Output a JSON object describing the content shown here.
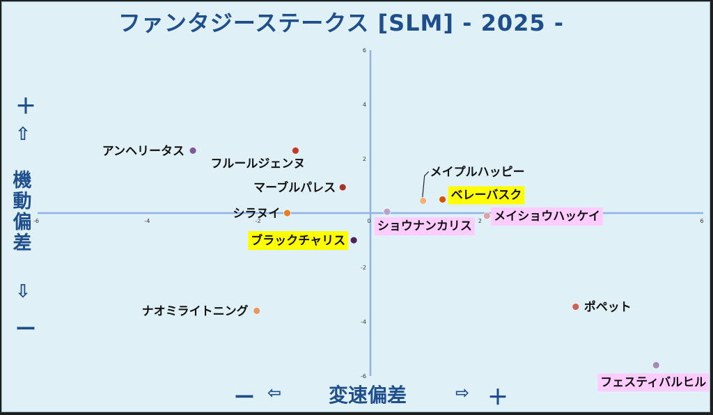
{
  "title": "ファンタジーステークス [SLM]  - 2025 -",
  "y_axis": {
    "plus": "＋",
    "up": "⇧",
    "label": "機動偏差",
    "down": "⇩",
    "minus": "ー"
  },
  "x_axis": {
    "minus": "ー",
    "left": "⇦",
    "label": "変速偏差",
    "right": "⇨",
    "plus": "＋"
  },
  "chart_data": {
    "type": "scatter",
    "xlim": [
      -6,
      6
    ],
    "ylim": [
      -6,
      6
    ],
    "x_ticks": [
      "-6",
      "-4",
      "-2",
      "0",
      "2",
      "4",
      "6"
    ],
    "y_ticks": [
      "6",
      "4",
      "2",
      "0",
      "-2",
      "-4",
      "-6"
    ],
    "grid": false,
    "points": [
      {
        "name": "アンヘリータス",
        "x": -3.2,
        "y": 2.3,
        "color": "#7e5a9b",
        "label_bg": "none"
      },
      {
        "name": "フルールジェンヌ",
        "x": -1.35,
        "y": 2.3,
        "color": "#c0392b",
        "label_bg": "none"
      },
      {
        "name": "マーブルパレス",
        "x": -0.5,
        "y": 0.95,
        "color": "#a93226",
        "label_bg": "none"
      },
      {
        "name": "シラヌイ",
        "x": -1.5,
        "y": 0.0,
        "color": "#e67e22",
        "label_bg": "none"
      },
      {
        "name": "ブラックチャリス",
        "x": -0.3,
        "y": -1.0,
        "color": "#4a235a",
        "label_bg": "#ffff00"
      },
      {
        "name": "ナオミライトニング",
        "x": -2.05,
        "y": -3.6,
        "color": "#e59866",
        "label_bg": "none"
      },
      {
        "name": "ショウナンカリス",
        "x": 0.3,
        "y": 0.05,
        "color": "#b9a2c8",
        "label_bg": "#ffccff"
      },
      {
        "name": "メイプルハッピー",
        "x": 0.95,
        "y": 0.45,
        "color": "#f0b27a",
        "label_bg": "none"
      },
      {
        "name": "ベレーバスク",
        "x": 1.3,
        "y": 0.5,
        "color": "#d35400",
        "label_bg": "#ffff00"
      },
      {
        "name": "メイショウハッケイ",
        "x": 2.1,
        "y": -0.1,
        "color": "#d7a3a3",
        "label_bg": "#ffccff"
      },
      {
        "name": "ポペット",
        "x": 3.7,
        "y": -3.45,
        "color": "#cd6155",
        "label_bg": "none"
      },
      {
        "name": "フェスティバルヒル",
        "x": 5.15,
        "y": -5.6,
        "color": "#a58ab8",
        "label_bg": "#ffccff"
      }
    ]
  }
}
